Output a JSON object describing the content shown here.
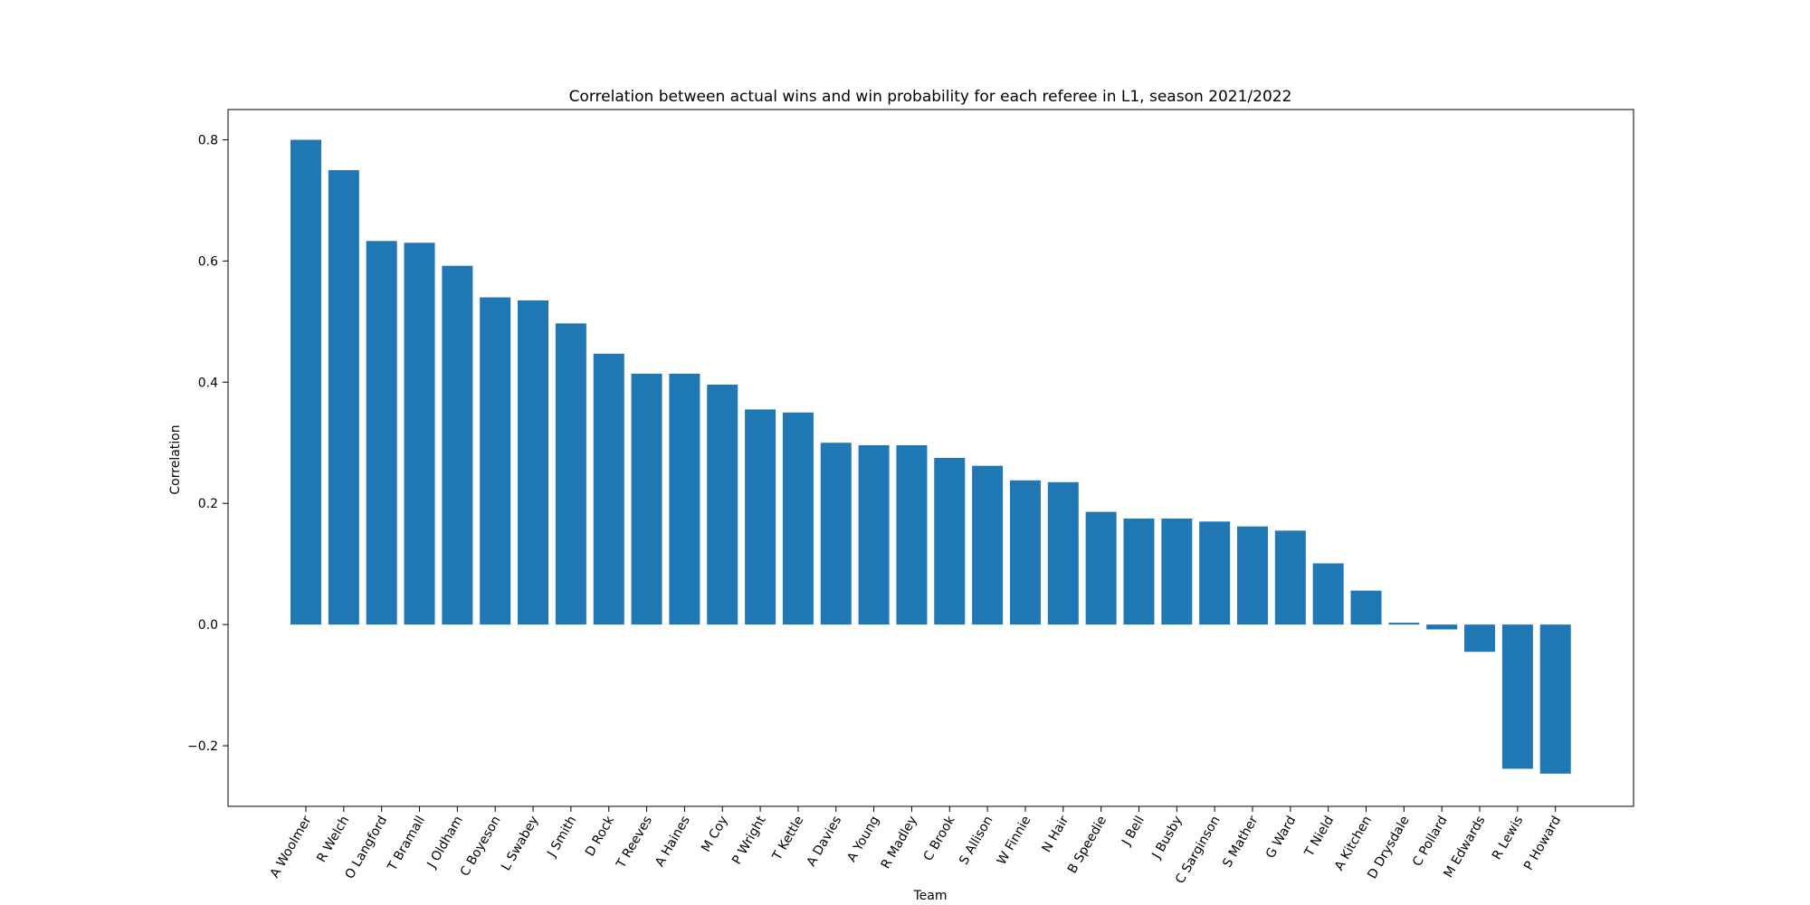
{
  "chart_data": {
    "type": "bar",
    "title": "Correlation between actual wins and win probability for each referee in L1, season 2021/2022",
    "xlabel": "Team",
    "ylabel": "Correlation",
    "ylim": [
      -0.3,
      0.85
    ],
    "yticks": [
      -0.2,
      0.0,
      0.2,
      0.4,
      0.6,
      0.8
    ],
    "ytick_labels": [
      "−0.2",
      "0.0",
      "0.2",
      "0.4",
      "0.6",
      "0.8"
    ],
    "grid": false,
    "bar_color": "#1f77b4",
    "categories": [
      "A Woolmer",
      "R Welch",
      "O Langford",
      "T Bramall",
      "J Oldham",
      "C Boyeson",
      "L Swabey",
      "J Smith",
      "D Rock",
      "T Reeves",
      "A Haines",
      "M Coy",
      "P Wright",
      "T Kettle",
      "A Davies",
      "A Young",
      "R Madley",
      "C Brook",
      "S Allison",
      "W Finnie",
      "N Hair",
      "B Speedie",
      "J Bell",
      "J Busby",
      "C Sarginson",
      "S Mather",
      "G Ward",
      "T Nield",
      "A Kitchen",
      "D Drysdale",
      "C Pollard",
      "M Edwards",
      "R Lewis",
      "P Howard"
    ],
    "values": [
      0.8,
      0.75,
      0.633,
      0.63,
      0.592,
      0.54,
      0.535,
      0.497,
      0.447,
      0.414,
      0.414,
      0.396,
      0.355,
      0.35,
      0.3,
      0.296,
      0.296,
      0.275,
      0.262,
      0.238,
      0.235,
      0.186,
      0.175,
      0.175,
      0.17,
      0.162,
      0.155,
      0.101,
      0.056,
      0.003,
      -0.008,
      -0.045,
      -0.238,
      -0.246
    ]
  }
}
